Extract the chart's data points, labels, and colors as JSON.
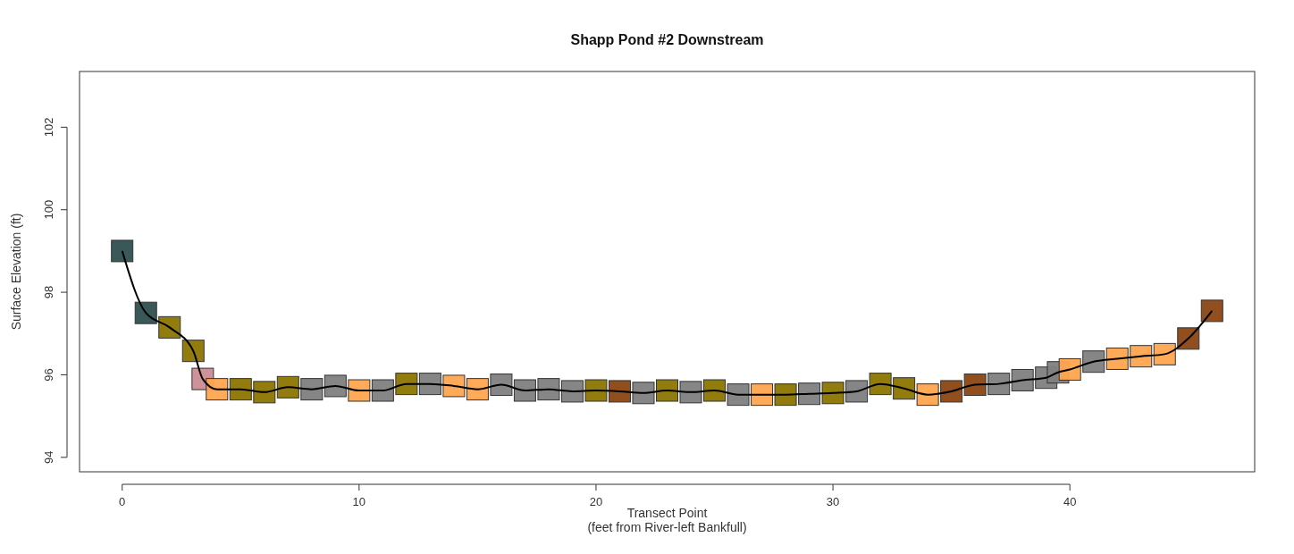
{
  "chart_data": {
    "type": "scatter",
    "title": "Shapp Pond #2 Downstream",
    "xlabel": "Transect Point\n(feet from River-left Bankfull)",
    "ylabel": "Surface Elevation (ft)",
    "xlim": [
      -1.8,
      47.8
    ],
    "ylim": [
      93.65,
      103.35
    ],
    "xticks": [
      0,
      10,
      20,
      30,
      40
    ],
    "yticks": [
      94,
      96,
      98,
      100,
      102
    ],
    "grid": false,
    "marker": "square",
    "series": [
      {
        "x": [
          0,
          1,
          2,
          3,
          3.4,
          4,
          5,
          6,
          7,
          8,
          9,
          10,
          11,
          12,
          13,
          14,
          15,
          16,
          17,
          18,
          19,
          20,
          21,
          22,
          23,
          24,
          25,
          26,
          27,
          28,
          29,
          30,
          31,
          32,
          33,
          34,
          35,
          36,
          37,
          38,
          39,
          39.5,
          40,
          41,
          42,
          43,
          44,
          45,
          46
        ],
        "values": [
          99.0,
          97.5,
          97.15,
          96.58,
          95.9,
          95.65,
          95.65,
          95.58,
          95.7,
          95.65,
          95.73,
          95.62,
          95.62,
          95.78,
          95.78,
          95.73,
          95.65,
          95.76,
          95.62,
          95.65,
          95.6,
          95.62,
          95.6,
          95.56,
          95.62,
          95.58,
          95.62,
          95.52,
          95.52,
          95.52,
          95.54,
          95.56,
          95.6,
          95.78,
          95.67,
          95.52,
          95.6,
          95.76,
          95.78,
          95.87,
          95.93,
          96.06,
          96.13,
          96.32,
          96.39,
          96.45,
          96.5,
          96.88,
          97.55
        ],
        "colors": [
          "#2f4f4f",
          "#2f4f4f",
          "#8b7500",
          "#8b7500",
          "#cd8c95",
          "#ffa54f",
          "#8b7500",
          "#8b7500",
          "#8b7500",
          "#808080",
          "#808080",
          "#ffa54f",
          "#808080",
          "#8b7500",
          "#808080",
          "#ffa54f",
          "#ffa54f",
          "#808080",
          "#808080",
          "#808080",
          "#808080",
          "#8b7500",
          "#8b4513",
          "#808080",
          "#8b7500",
          "#808080",
          "#8b7500",
          "#808080",
          "#ffa54f",
          "#8b7500",
          "#808080",
          "#8b7500",
          "#808080",
          "#8b7500",
          "#8b7500",
          "#ffa54f",
          "#8b4513",
          "#8b4513",
          "#808080",
          "#808080",
          "#808080",
          "#808080",
          "#ffa54f",
          "#808080",
          "#ffa54f",
          "#ffa54f",
          "#ffa54f",
          "#8b4513",
          "#8b4513"
        ]
      },
      {
        "type": "line",
        "color": "#000000",
        "marker": "none",
        "line_style": "solid",
        "x": [
          0,
          1,
          2,
          3,
          3.4,
          4,
          5,
          6,
          7,
          8,
          9,
          10,
          11,
          12,
          13,
          14,
          15,
          16,
          17,
          18,
          19,
          20,
          21,
          22,
          23,
          24,
          25,
          26,
          27,
          28,
          29,
          30,
          31,
          32,
          33,
          34,
          35,
          36,
          37,
          38,
          39,
          39.5,
          40,
          41,
          42,
          43,
          44,
          45,
          46
        ],
        "values": [
          99.0,
          97.5,
          97.15,
          96.58,
          95.9,
          95.65,
          95.65,
          95.58,
          95.7,
          95.65,
          95.73,
          95.62,
          95.62,
          95.78,
          95.78,
          95.73,
          95.65,
          95.76,
          95.62,
          95.65,
          95.6,
          95.62,
          95.6,
          95.56,
          95.62,
          95.58,
          95.62,
          95.52,
          95.52,
          95.52,
          95.54,
          95.56,
          95.6,
          95.78,
          95.67,
          95.52,
          95.6,
          95.76,
          95.78,
          95.87,
          95.93,
          96.06,
          96.13,
          96.32,
          96.39,
          96.45,
          96.5,
          96.88,
          97.55
        ]
      }
    ]
  }
}
